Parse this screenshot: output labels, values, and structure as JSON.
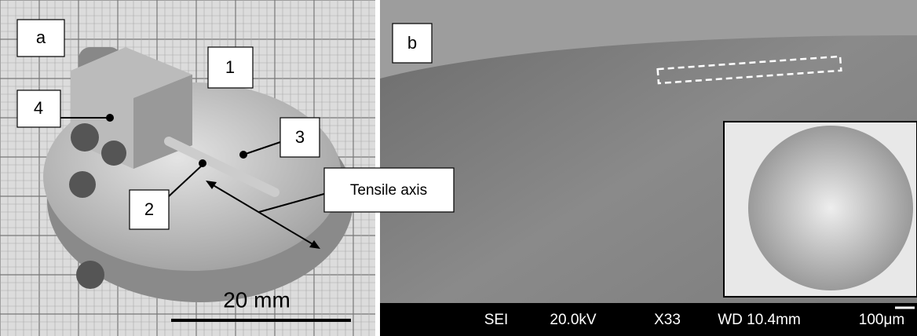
{
  "panel_a": {
    "label": "a",
    "callouts": [
      "1",
      "2",
      "3",
      "4"
    ],
    "axis_label": "Tensile axis",
    "scale_bar": "20 mm"
  },
  "panel_b": {
    "label": "b",
    "info_bar": [
      "SEI",
      "20.0kV",
      "X33",
      "WD 10.4mm",
      "100μm"
    ]
  }
}
